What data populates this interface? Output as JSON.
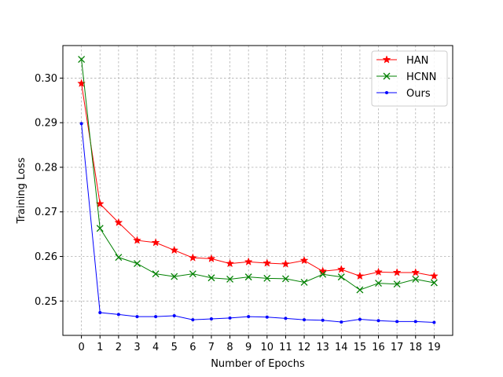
{
  "chart_data": {
    "type": "line",
    "xlabel": "Number of Epochs",
    "ylabel": "Training Loss",
    "x": [
      0,
      1,
      2,
      3,
      4,
      5,
      6,
      7,
      8,
      9,
      10,
      11,
      12,
      13,
      14,
      15,
      16,
      17,
      18,
      19
    ],
    "xlim": [
      -1,
      20
    ],
    "ylim": [
      0.2423,
      0.3073
    ],
    "yticks": [
      0.25,
      0.26,
      0.27,
      0.28,
      0.29,
      0.3
    ],
    "ytick_labels": [
      "0.25",
      "0.26",
      "0.27",
      "0.28",
      "0.29",
      "0.30"
    ],
    "grid": true,
    "legend_position": "top-right",
    "series": [
      {
        "name": "HAN",
        "color": "#ff0000",
        "marker": "star",
        "values": [
          0.2988,
          0.2718,
          0.2676,
          0.2636,
          0.2631,
          0.2614,
          0.2597,
          0.2595,
          0.2584,
          0.2588,
          0.2585,
          0.2583,
          0.2591,
          0.2567,
          0.2571,
          0.2556,
          0.2565,
          0.2564,
          0.2564,
          0.2556
        ]
      },
      {
        "name": "HCNN",
        "color": "#008000",
        "marker": "x",
        "values": [
          0.3042,
          0.2663,
          0.2598,
          0.2584,
          0.2561,
          0.2555,
          0.2561,
          0.2552,
          0.2549,
          0.2554,
          0.2551,
          0.255,
          0.2542,
          0.256,
          0.2554,
          0.2525,
          0.254,
          0.2538,
          0.2549,
          0.2541
        ]
      },
      {
        "name": "Ours",
        "color": "#0000ff",
        "marker": "dot",
        "values": [
          0.2898,
          0.2474,
          0.247,
          0.2465,
          0.2465,
          0.2467,
          0.2458,
          0.246,
          0.2462,
          0.2465,
          0.2464,
          0.2461,
          0.2458,
          0.2457,
          0.2453,
          0.2459,
          0.2456,
          0.2454,
          0.2454,
          0.2452
        ]
      }
    ]
  }
}
